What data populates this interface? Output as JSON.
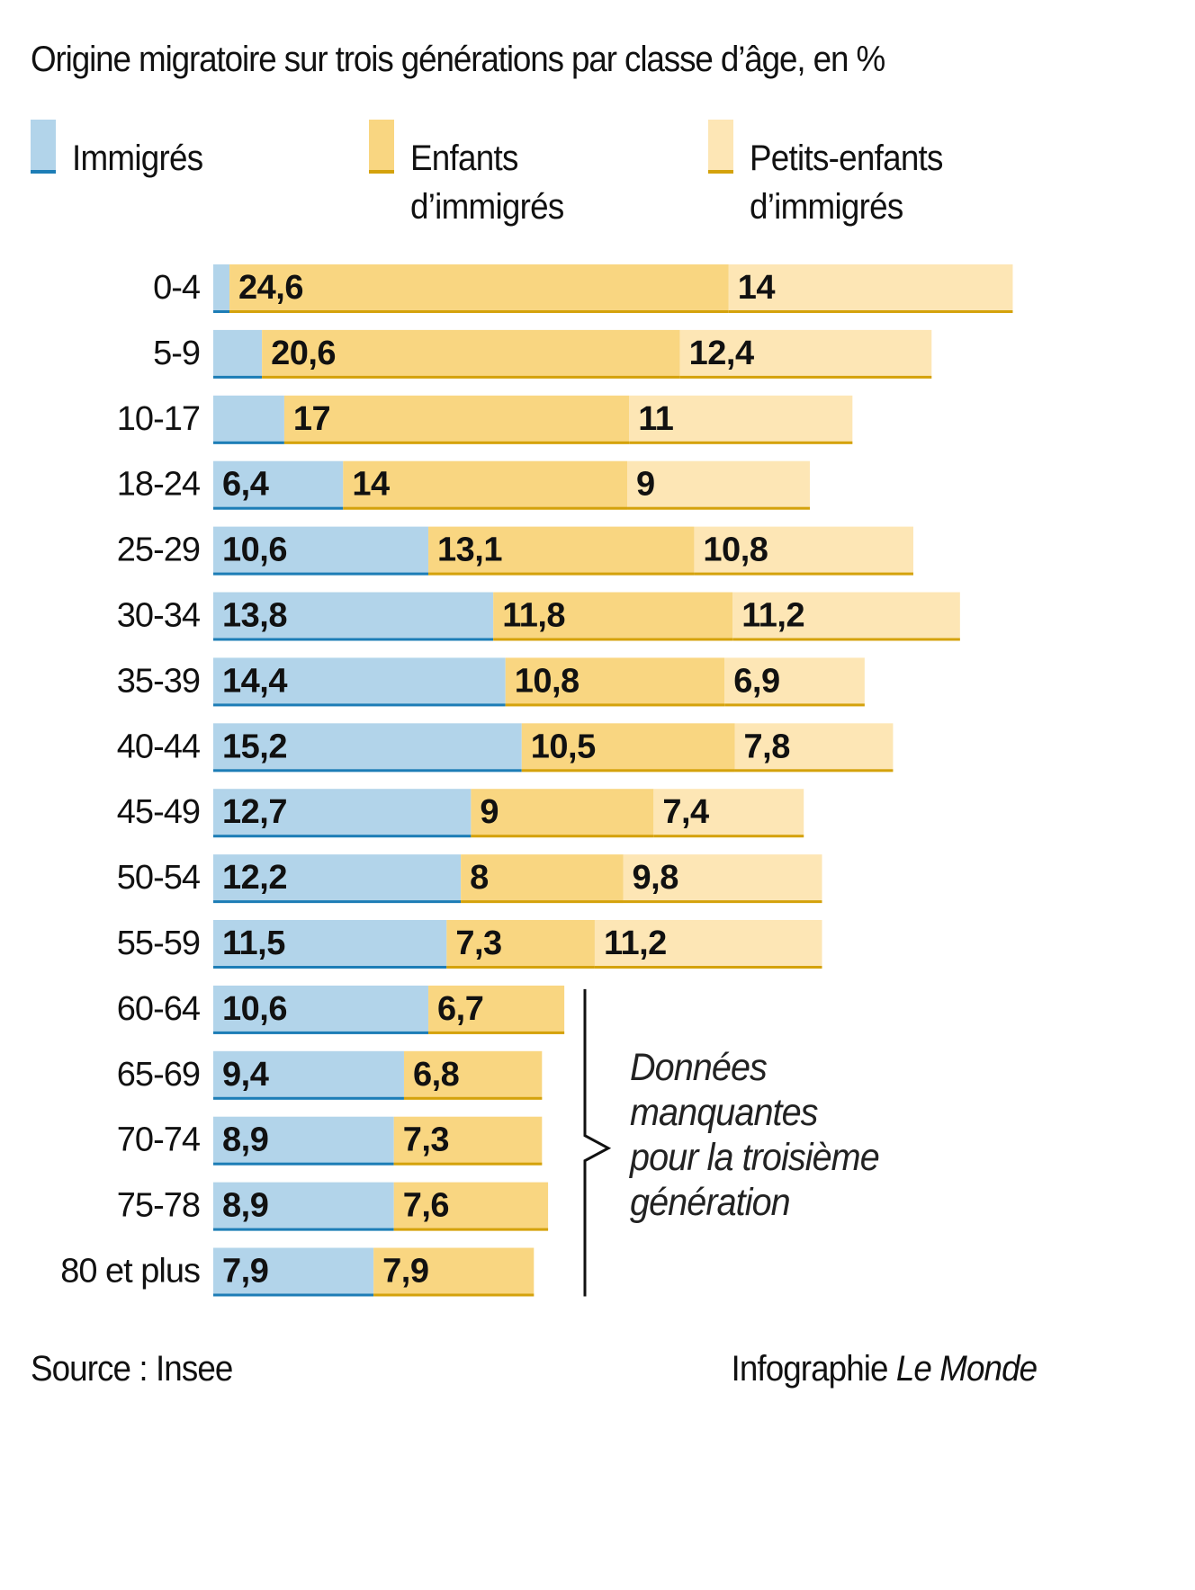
{
  "colors": {
    "immigres": "#B2D4EA",
    "immigres_line": "#1D7DB6",
    "enfants": "#F9D681",
    "enfants_line": "#D4A20C",
    "petits_enfants": "#FDE6B5",
    "petits_enfants_line": "#D4A20C",
    "bracket": "#111111"
  },
  "legend": [
    {
      "key": "immigres",
      "label": "Immigrés"
    },
    {
      "key": "enfants",
      "label": "Enfants d’immigrés"
    },
    {
      "key": "petits_enfants",
      "label": "Petits-enfants d’immigrés"
    }
  ],
  "annotation": {
    "lines": [
      "Données",
      "manquantes",
      "pour la troisième",
      "génération"
    ]
  },
  "footer": {
    "source": "Source : Insee",
    "credit_prefix": "Infographie ",
    "credit_brand": "Le Monde"
  },
  "chart_data": {
    "type": "bar",
    "orientation": "horizontal",
    "stacked": true,
    "title": "Origine migratoire sur trois générations par classe d’âge, en %",
    "xlabel": "",
    "ylabel": "",
    "grid": false,
    "legend_position": "top",
    "xlim": [
      0,
      40
    ],
    "categories": [
      "0-4",
      "5-9",
      "10-17",
      "18-24",
      "25-29",
      "30-34",
      "35-39",
      "40-44",
      "45-49",
      "50-54",
      "55-59",
      "60-64",
      "65-69",
      "70-74",
      "75-78",
      "80 et plus"
    ],
    "series": [
      {
        "name": "Immigrés",
        "key": "immigres",
        "values": [
          0.8,
          2.4,
          3.5,
          6.4,
          10.6,
          13.8,
          14.4,
          15.2,
          12.7,
          12.2,
          11.5,
          10.6,
          9.4,
          8.9,
          8.9,
          7.9
        ],
        "labels": [
          "",
          "",
          "",
          "6,4",
          "10,6",
          "13,8",
          "14,4",
          "15,2",
          "12,7",
          "12,2",
          "11,5",
          "10,6",
          "9,4",
          "8,9",
          "8,9",
          "7,9"
        ]
      },
      {
        "name": "Enfants d’immigrés",
        "key": "enfants",
        "values": [
          24.6,
          20.6,
          17,
          14,
          13.1,
          11.8,
          10.8,
          10.5,
          9,
          8,
          7.3,
          6.7,
          6.8,
          7.3,
          7.6,
          7.9
        ],
        "labels": [
          "24,6",
          "20,6",
          "17",
          "14",
          "13,1",
          "11,8",
          "10,8",
          "10,5",
          "9",
          "8",
          "7,3",
          "6,7",
          "6,8",
          "7,3",
          "7,6",
          "7,9"
        ]
      },
      {
        "name": "Petits-enfants d’immigrés",
        "key": "petits_enfants",
        "values": [
          14,
          12.4,
          11,
          9,
          10.8,
          11.2,
          6.9,
          7.8,
          7.4,
          9.8,
          11.2,
          null,
          null,
          null,
          null,
          null
        ],
        "labels": [
          "14",
          "12,4",
          "11",
          "9",
          "10,8",
          "11,2",
          "6,9",
          "7,8",
          "7,4",
          "9,8",
          "11,2",
          "",
          "",
          "",
          "",
          ""
        ]
      }
    ],
    "annotations": [
      {
        "text": "Données manquantes pour la troisième génération",
        "applies_to": [
          "60-64",
          "65-69",
          "70-74",
          "75-78",
          "80 et plus"
        ]
      }
    ]
  }
}
